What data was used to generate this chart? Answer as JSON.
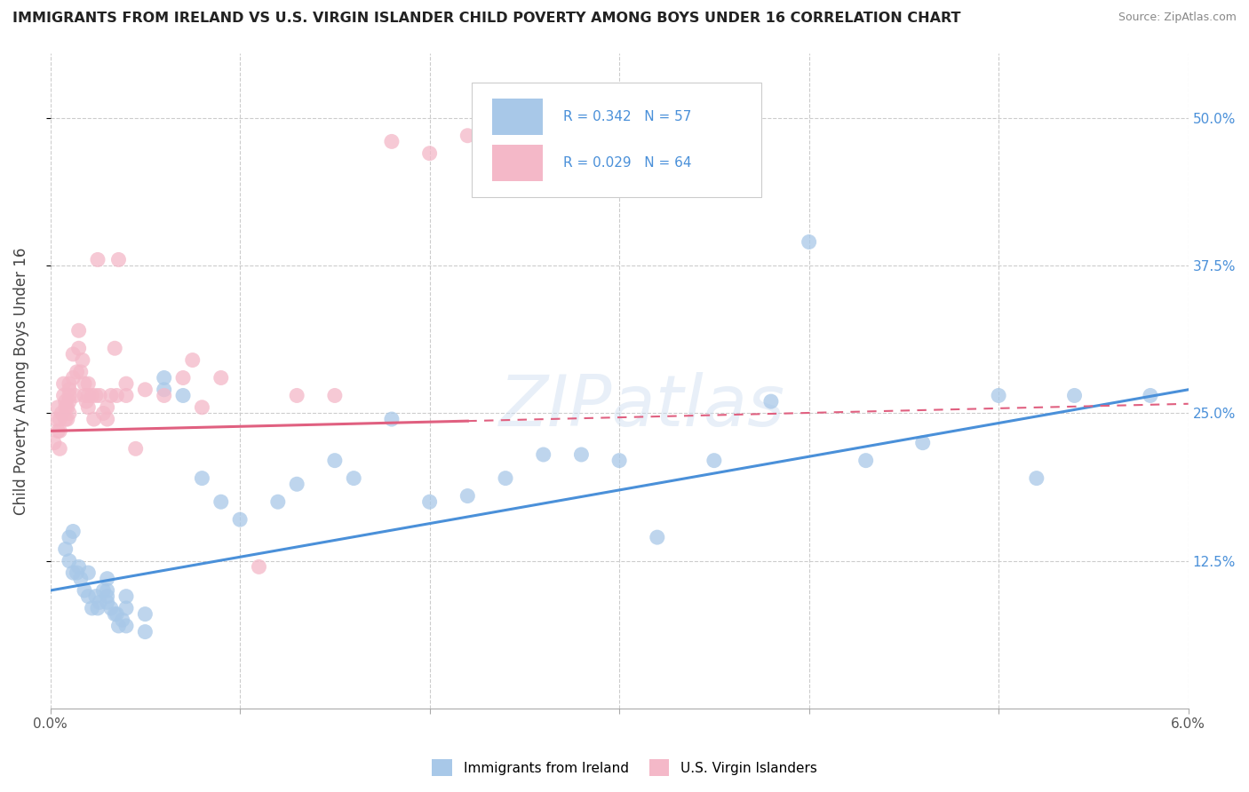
{
  "title": "IMMIGRANTS FROM IRELAND VS U.S. VIRGIN ISLANDER CHILD POVERTY AMONG BOYS UNDER 16 CORRELATION CHART",
  "source": "Source: ZipAtlas.com",
  "ylabel": "Child Poverty Among Boys Under 16",
  "x_min": 0.0,
  "x_max": 0.06,
  "y_min": 0.0,
  "y_max": 0.555,
  "x_ticks": [
    0.0,
    0.01,
    0.02,
    0.03,
    0.04,
    0.05,
    0.06
  ],
  "y_ticks_right": [
    0.125,
    0.25,
    0.375,
    0.5
  ],
  "y_tick_labels_right": [
    "12.5%",
    "25.0%",
    "37.5%",
    "50.0%"
  ],
  "legend_R1": "0.342",
  "legend_N1": "57",
  "legend_R2": "0.029",
  "legend_N2": "64",
  "color_blue": "#a8c8e8",
  "color_pink": "#f4b8c8",
  "color_blue_line": "#4a90d9",
  "color_pink_line": "#e06080",
  "color_blue_text": "#4a90d9",
  "watermark": "ZIPatlas",
  "blue_scatter_x": [
    0.0008,
    0.001,
    0.001,
    0.0012,
    0.0012,
    0.0014,
    0.0015,
    0.0016,
    0.0018,
    0.002,
    0.002,
    0.0022,
    0.0024,
    0.0025,
    0.0026,
    0.0028,
    0.003,
    0.003,
    0.003,
    0.003,
    0.0032,
    0.0034,
    0.0035,
    0.0036,
    0.0038,
    0.004,
    0.004,
    0.004,
    0.005,
    0.005,
    0.006,
    0.006,
    0.007,
    0.008,
    0.009,
    0.01,
    0.012,
    0.013,
    0.015,
    0.016,
    0.018,
    0.02,
    0.022,
    0.024,
    0.026,
    0.028,
    0.03,
    0.032,
    0.035,
    0.038,
    0.04,
    0.043,
    0.046,
    0.05,
    0.052,
    0.054,
    0.058
  ],
  "blue_scatter_y": [
    0.135,
    0.125,
    0.145,
    0.115,
    0.15,
    0.115,
    0.12,
    0.11,
    0.1,
    0.095,
    0.115,
    0.085,
    0.095,
    0.085,
    0.09,
    0.1,
    0.09,
    0.095,
    0.1,
    0.11,
    0.085,
    0.08,
    0.08,
    0.07,
    0.075,
    0.085,
    0.095,
    0.07,
    0.065,
    0.08,
    0.27,
    0.28,
    0.265,
    0.195,
    0.175,
    0.16,
    0.175,
    0.19,
    0.21,
    0.195,
    0.245,
    0.175,
    0.18,
    0.195,
    0.215,
    0.215,
    0.21,
    0.145,
    0.21,
    0.26,
    0.395,
    0.21,
    0.225,
    0.265,
    0.195,
    0.265,
    0.265
  ],
  "pink_scatter_x": [
    0.0002,
    0.0003,
    0.0004,
    0.0004,
    0.0005,
    0.0005,
    0.0005,
    0.0006,
    0.0007,
    0.0007,
    0.0008,
    0.0008,
    0.0008,
    0.0009,
    0.0009,
    0.001,
    0.001,
    0.001,
    0.001,
    0.001,
    0.0012,
    0.0012,
    0.0013,
    0.0014,
    0.0015,
    0.0015,
    0.0016,
    0.0017,
    0.0018,
    0.0018,
    0.0019,
    0.002,
    0.002,
    0.002,
    0.0022,
    0.0023,
    0.0024,
    0.0025,
    0.0026,
    0.0028,
    0.003,
    0.003,
    0.0032,
    0.0034,
    0.0035,
    0.0036,
    0.004,
    0.004,
    0.0045,
    0.005,
    0.006,
    0.007,
    0.0075,
    0.008,
    0.009,
    0.011,
    0.013,
    0.015,
    0.018,
    0.02,
    0.022,
    0.025,
    0.028,
    0.032
  ],
  "pink_scatter_y": [
    0.225,
    0.245,
    0.235,
    0.255,
    0.22,
    0.235,
    0.245,
    0.25,
    0.265,
    0.275,
    0.245,
    0.255,
    0.26,
    0.245,
    0.255,
    0.25,
    0.26,
    0.27,
    0.265,
    0.275,
    0.3,
    0.28,
    0.265,
    0.285,
    0.32,
    0.305,
    0.285,
    0.295,
    0.265,
    0.275,
    0.26,
    0.255,
    0.265,
    0.275,
    0.265,
    0.245,
    0.265,
    0.38,
    0.265,
    0.25,
    0.245,
    0.255,
    0.265,
    0.305,
    0.265,
    0.38,
    0.265,
    0.275,
    0.22,
    0.27,
    0.265,
    0.28,
    0.295,
    0.255,
    0.28,
    0.12,
    0.265,
    0.265,
    0.48,
    0.47,
    0.485,
    0.47,
    0.5,
    0.48
  ],
  "blue_line_x0": 0.0,
  "blue_line_x1": 0.06,
  "blue_line_y0": 0.1,
  "blue_line_y1": 0.27,
  "pink_line_x0": 0.0,
  "pink_line_x1": 0.06,
  "pink_line_y0": 0.235,
  "pink_line_y1": 0.258,
  "pink_line_solid_x1": 0.022,
  "grid_color": "#cccccc",
  "background_color": "#ffffff"
}
